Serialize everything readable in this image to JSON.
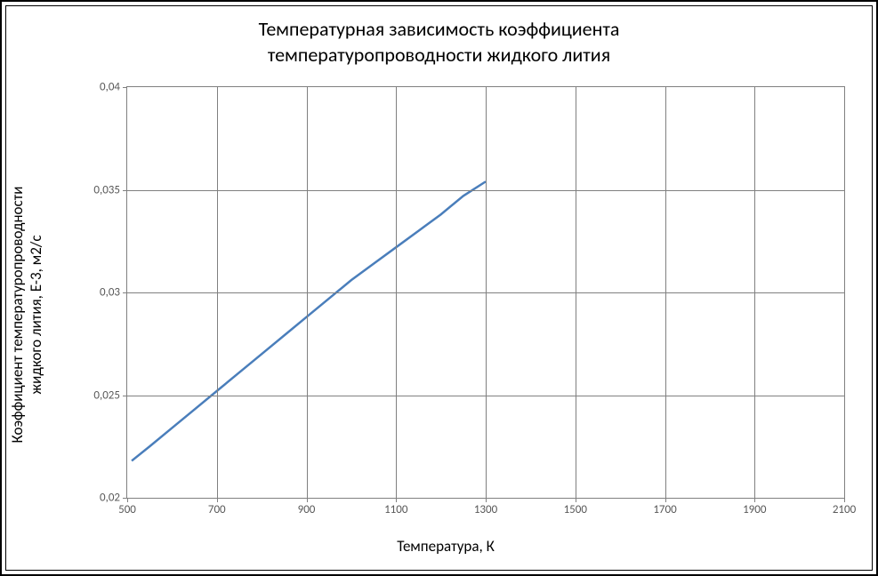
{
  "chart": {
    "title_line1": "Температурная зависимость коэффициента",
    "title_line2": "температуропроводности жидкого лития",
    "title_fontsize": 22,
    "x_axis_label": "Температура, К",
    "y_axis_label_line1": "Коэффициент температуропроводности",
    "y_axis_label_line2": "жидкого лития, E-3,  м2/с",
    "axis_label_fontsize": 17,
    "tick_label_fontsize": 13,
    "type": "line",
    "background_color": "#ffffff",
    "border_color": "#000000",
    "grid_color": "#808080",
    "tick_label_color": "#595959",
    "line_color": "#4a7ebb",
    "line_width": 2.5,
    "xlim": [
      500,
      2100
    ],
    "ylim": [
      0.02,
      0.04
    ],
    "x_ticks": [
      500,
      700,
      900,
      1100,
      1300,
      1500,
      1700,
      1900,
      2100
    ],
    "x_tick_labels": [
      "500",
      "700",
      "900",
      "1100",
      "1300",
      "1500",
      "1700",
      "1900",
      "2100"
    ],
    "y_ticks": [
      0.02,
      0.025,
      0.03,
      0.035,
      0.04
    ],
    "y_tick_labels": [
      "0,02",
      "0,025",
      "0,03",
      "0,035",
      "0,04"
    ],
    "series": {
      "x": [
        510,
        550,
        600,
        650,
        700,
        750,
        800,
        850,
        900,
        950,
        1000,
        1050,
        1100,
        1150,
        1200,
        1250,
        1300
      ],
      "y": [
        0.0218,
        0.0225,
        0.0234,
        0.0243,
        0.0252,
        0.0261,
        0.027,
        0.0279,
        0.0288,
        0.0297,
        0.0306,
        0.0314,
        0.0322,
        0.033,
        0.0338,
        0.0347,
        0.0354
      ]
    }
  }
}
